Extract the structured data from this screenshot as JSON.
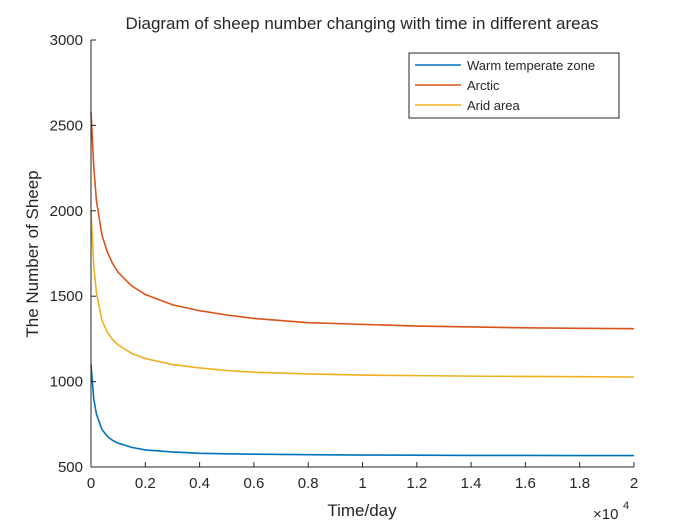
{
  "chart_data": {
    "type": "line",
    "title": "Diagram of sheep number changing with time in different areas",
    "xlabel": "Time/day",
    "ylabel": "The Number of Sheep",
    "x_exponent_label": "×10",
    "x_exponent_power": "4",
    "x_multiplier": 10000,
    "xlim": [
      0,
      20000
    ],
    "ylim": [
      500,
      3000
    ],
    "xtick_values": [
      0,
      2000,
      4000,
      6000,
      8000,
      10000,
      12000,
      14000,
      16000,
      18000,
      20000
    ],
    "xtick_labels": [
      "0",
      "0.2",
      "0.4",
      "0.6",
      "0.8",
      "1",
      "1.2",
      "1.4",
      "1.6",
      "1.8",
      "2"
    ],
    "ytick_values": [
      500,
      1000,
      1500,
      2000,
      2500,
      3000
    ],
    "ytick_labels": [
      "500",
      "1000",
      "1500",
      "2000",
      "2500",
      "3000"
    ],
    "grid": false,
    "legend_position": "top-right",
    "series": [
      {
        "name": "Warm temperate zone",
        "color": "#0072BD",
        "x": [
          0,
          100,
          200,
          400,
          600,
          800,
          1000,
          1500,
          2000,
          3000,
          4000,
          5000,
          6000,
          8000,
          10000,
          12000,
          14000,
          16000,
          18000,
          20000
        ],
        "y": [
          1100,
          900,
          810,
          720,
          680,
          655,
          640,
          615,
          600,
          588,
          580,
          577,
          575,
          572,
          570,
          569,
          568,
          568,
          567,
          567
        ]
      },
      {
        "name": "Arctic",
        "color": "#D95319",
        "x": [
          0,
          100,
          200,
          400,
          600,
          800,
          1000,
          1500,
          2000,
          3000,
          4000,
          5000,
          6000,
          8000,
          10000,
          12000,
          14000,
          16000,
          18000,
          20000
        ],
        "y": [
          2580,
          2260,
          2060,
          1860,
          1760,
          1690,
          1640,
          1560,
          1510,
          1450,
          1415,
          1390,
          1370,
          1345,
          1335,
          1325,
          1320,
          1315,
          1312,
          1310
        ]
      },
      {
        "name": "Arid area",
        "color": "#EDB120",
        "x": [
          0,
          100,
          200,
          400,
          600,
          800,
          1000,
          1500,
          2000,
          3000,
          4000,
          5000,
          6000,
          8000,
          10000,
          12000,
          14000,
          16000,
          18000,
          20000
        ],
        "y": [
          2000,
          1680,
          1520,
          1360,
          1290,
          1245,
          1215,
          1165,
          1135,
          1100,
          1080,
          1065,
          1055,
          1045,
          1038,
          1035,
          1032,
          1030,
          1029,
          1027
        ]
      }
    ]
  }
}
